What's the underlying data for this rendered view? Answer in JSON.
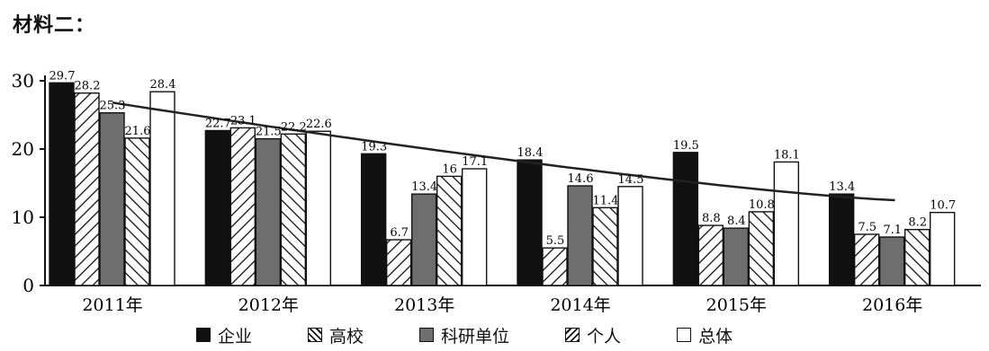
{
  "heading": "材料二：",
  "chart_data": {
    "type": "bar",
    "categories": [
      "2011年",
      "2012年",
      "2013年",
      "2014年",
      "2015年",
      "2016年"
    ],
    "ylim": [
      0,
      30
    ],
    "yticks": [
      0,
      10,
      20,
      30
    ],
    "series": [
      {
        "name": "企业",
        "fill": "solid-black",
        "values": [
          29.7,
          22.7,
          19.3,
          18.4,
          19.5,
          13.4
        ]
      },
      {
        "name": "高校",
        "fill": "hatch-forward",
        "values": [
          28.2,
          23.1,
          6.7,
          5.5,
          8.8,
          7.5
        ]
      },
      {
        "name": "科研单位",
        "fill": "solid-grey",
        "values": [
          25.3,
          21.5,
          13.4,
          14.6,
          8.4,
          7.1
        ]
      },
      {
        "name": "个人",
        "fill": "hatch-back",
        "values": [
          21.6,
          22.2,
          16,
          11.4,
          10.8,
          8.2
        ]
      },
      {
        "name": "总体",
        "fill": "white",
        "values": [
          28.4,
          22.6,
          17.1,
          14.5,
          18.1,
          10.7
        ]
      }
    ],
    "trendline": {
      "type": "smooth-decreasing",
      "from": [
        2011,
        26.8
      ],
      "to": [
        2016,
        12.5
      ]
    },
    "grid": false,
    "legend_position": "bottom"
  },
  "colors": {
    "black": "#111111",
    "grey": "#6e6e6e",
    "white": "#ffffff"
  }
}
